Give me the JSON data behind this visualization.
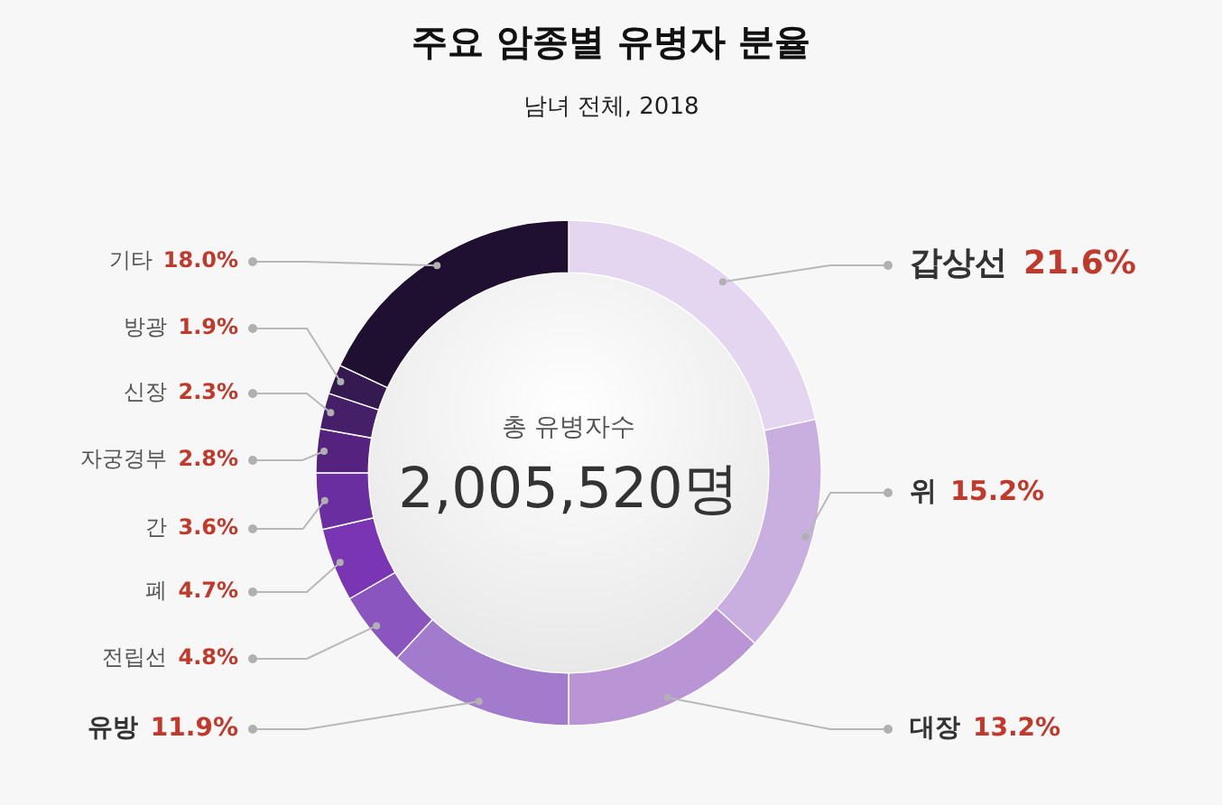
{
  "chart_data": {
    "type": "donut",
    "title": "주요 암종별 유병자 분율",
    "subtitle": "남녀 전체, 2018",
    "categories": [
      "갑상선",
      "위",
      "대장",
      "유방",
      "전립선",
      "폐",
      "간",
      "자궁경부",
      "신장",
      "방광",
      "기타"
    ],
    "values": [
      21.6,
      15.2,
      13.2,
      11.9,
      4.8,
      4.7,
      3.6,
      2.8,
      2.3,
      1.9,
      18.0
    ],
    "value_labels": [
      "21.6%",
      "15.2%",
      "13.2%",
      "11.9%",
      "4.8%",
      "4.7%",
      "3.6%",
      "2.8%",
      "2.3%",
      "1.9%",
      "18.0%"
    ],
    "colors": [
      "#e4d6f0",
      "#c9afe0",
      "#b995d6",
      "#a27bcd",
      "#8b55c0",
      "#7a35b4",
      "#6a2ea0",
      "#55237f",
      "#452068",
      "#351a52",
      "#1f0f30"
    ],
    "annotations": [
      "총 유병자수",
      "2,005,520명"
    ],
    "legend": false
  }
}
